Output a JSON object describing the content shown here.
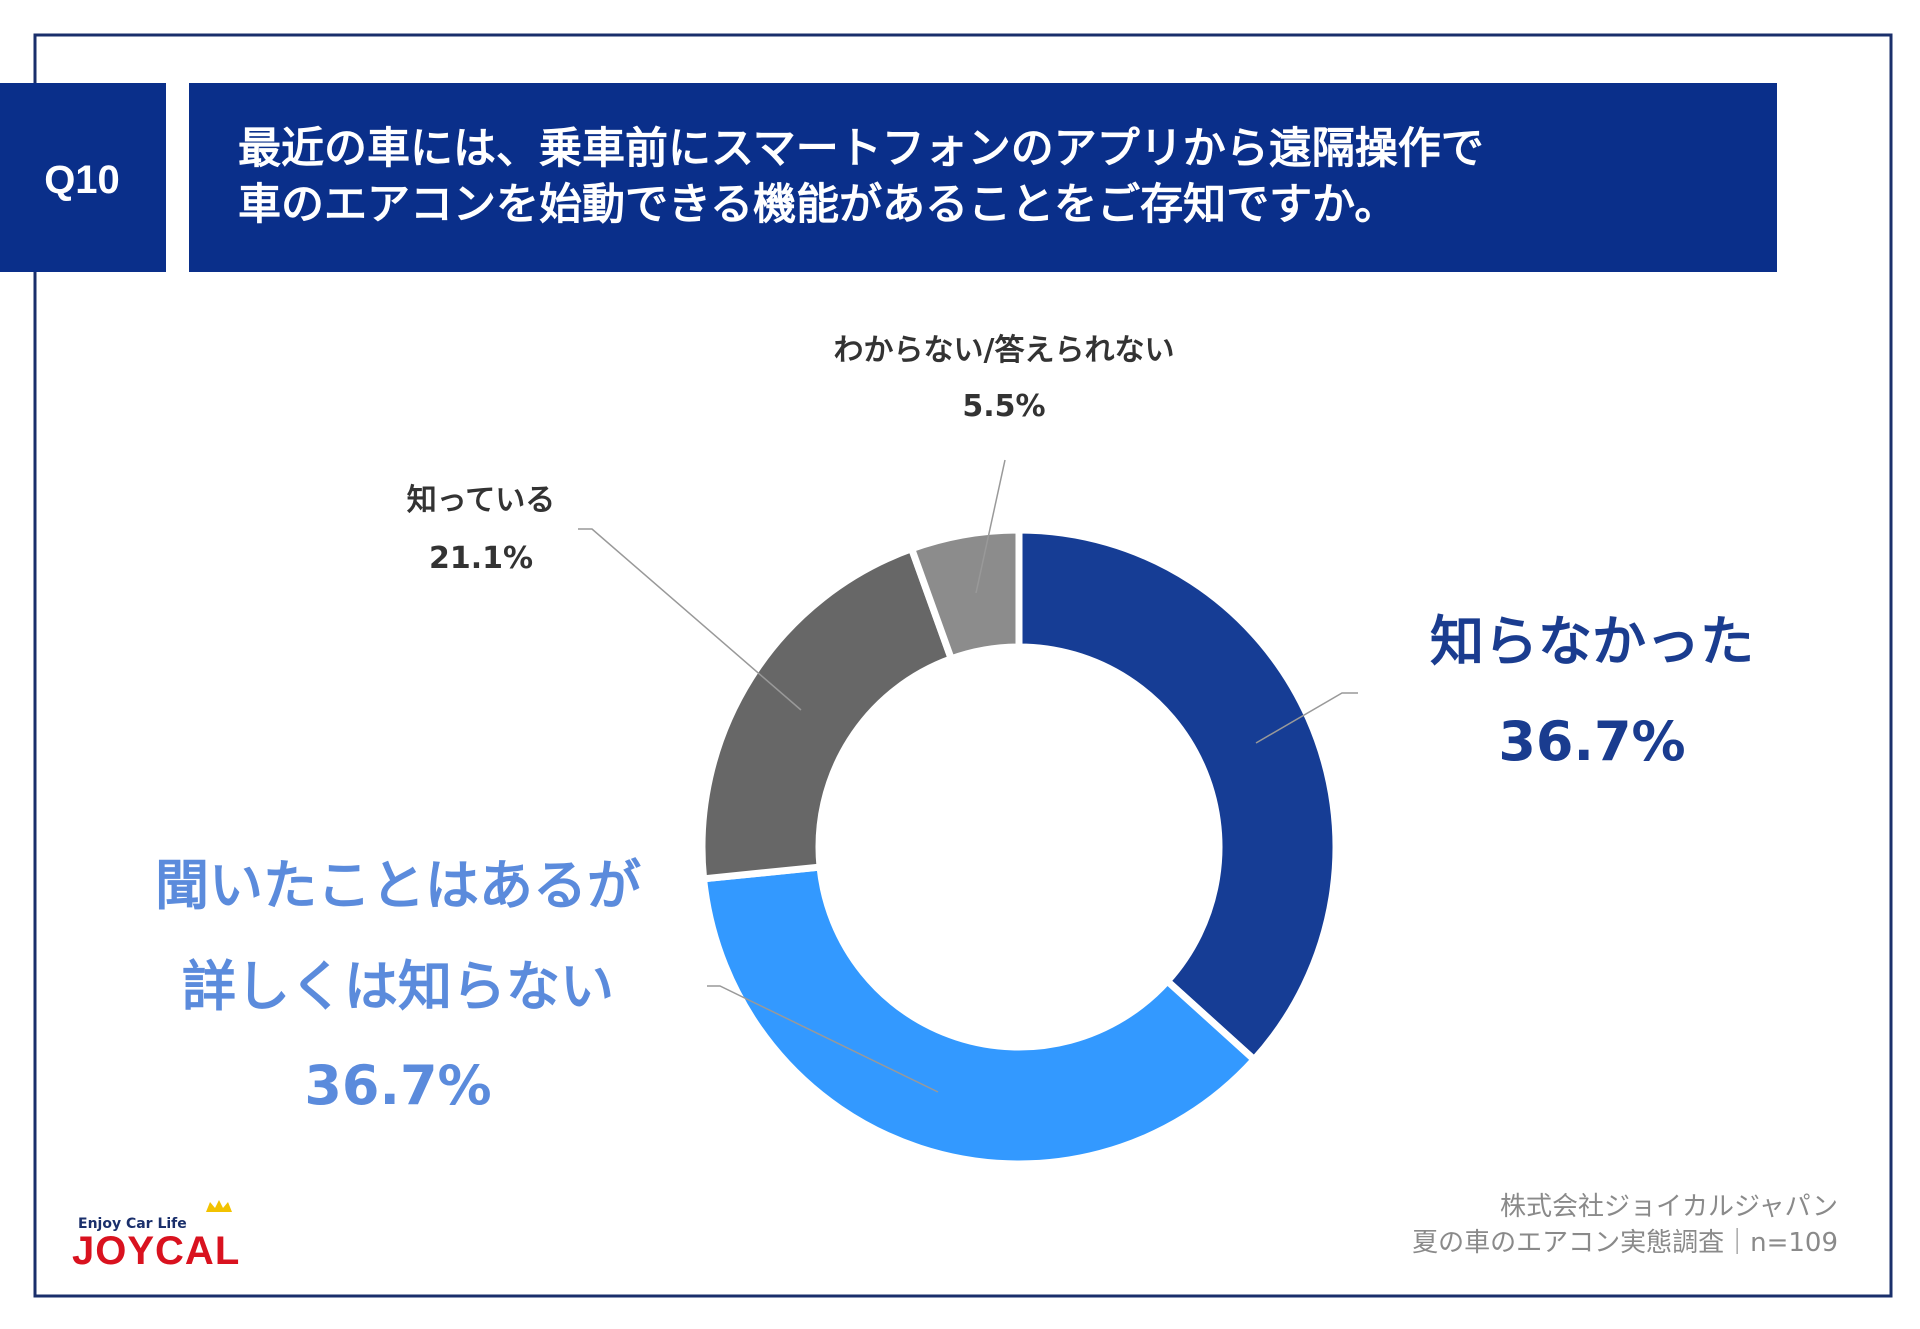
{
  "question": {
    "number": "Q10",
    "line1": "最近の車には、乗車前にスマートフォンのアプリから遠隔操作で",
    "line2": "車のエアコンを始動できる機能があることをご存知ですか。"
  },
  "chart_data": {
    "type": "pie",
    "variant": "donut",
    "title": "最近の車には、乗車前にスマートフォンのアプリから遠隔操作で車のエアコンを始動できる機能があることをご存知ですか。",
    "slices": [
      {
        "label": "知らなかった",
        "label_lines": [
          "知らなかった"
        ],
        "value": 36.7,
        "display": "36.7%",
        "color": "#163d95"
      },
      {
        "label": "聞いたことはあるが詳しくは知らない",
        "label_lines": [
          "聞いたことはあるが",
          "詳しくは知らない"
        ],
        "value": 36.7,
        "display": "36.7%",
        "color": "#3399ff"
      },
      {
        "label": "知っている",
        "label_lines": [
          "知っている"
        ],
        "value": 21.1,
        "display": "21.1%",
        "color": "#676767"
      },
      {
        "label": "わからない/答えられない",
        "label_lines": [
          "わからない/答えられない"
        ],
        "value": 5.5,
        "display": "5.5%",
        "color": "#8c8c8c"
      }
    ],
    "start": "top",
    "direction": "clockwise"
  },
  "footer": {
    "company": "株式会社ジョイカルジャパン",
    "survey": "夏の車のエアコン実態調査｜n=109"
  },
  "logo": {
    "tagline": "Enjoy Car Life",
    "name": "JOYCAL"
  },
  "colors": {
    "navy": "#0a2f8a",
    "frame": "#1a2f6b"
  }
}
